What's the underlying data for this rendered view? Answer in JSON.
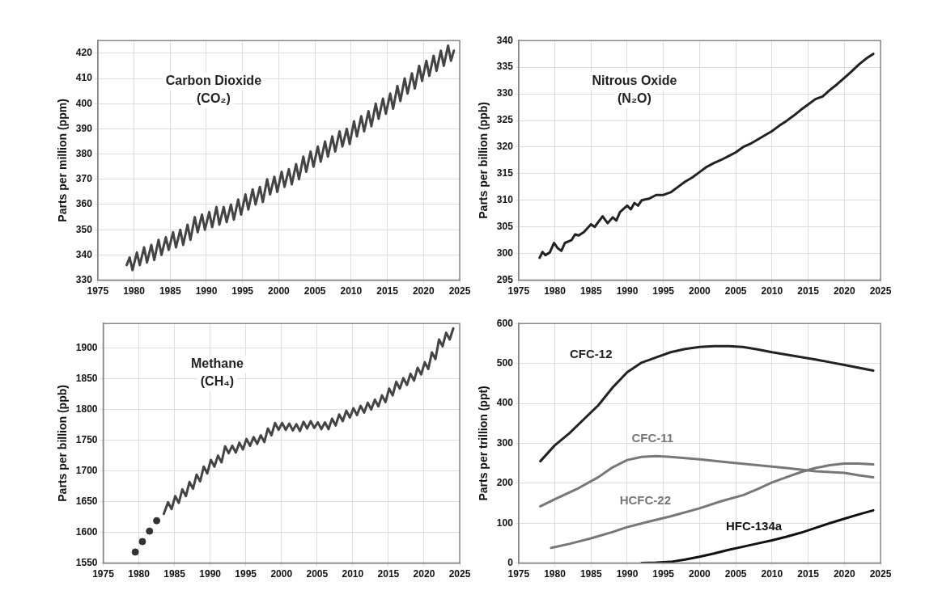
{
  "chart_data": [
    {
      "type": "line",
      "title": "Carbon Dioxide (CO₂)",
      "ylabel": "Parts per million (ppm)",
      "xlim": [
        1975,
        2025
      ],
      "xticks": [
        1975,
        1980,
        1985,
        1990,
        1995,
        2000,
        2005,
        2010,
        2015,
        2020,
        2025
      ],
      "ylim": [
        330,
        425
      ],
      "yticks": [
        330,
        340,
        350,
        360,
        370,
        380,
        390,
        400,
        410,
        420
      ],
      "grid": true,
      "marker": "none",
      "line_style": "solid",
      "legend": false,
      "series": [
        {
          "color": "#444444",
          "x": [
            1979.0,
            1979.4,
            1979.8,
            1980.4,
            1980.8,
            1981.4,
            1981.8,
            1982.4,
            1982.8,
            1983.4,
            1983.8,
            1984.4,
            1984.8,
            1985.4,
            1985.8,
            1986.4,
            1986.8,
            1987.4,
            1987.8,
            1988.4,
            1988.8,
            1989.4,
            1989.8,
            1990.4,
            1990.8,
            1991.4,
            1991.8,
            1992.4,
            1992.8,
            1993.4,
            1993.8,
            1994.4,
            1994.8,
            1995.4,
            1995.8,
            1996.4,
            1996.8,
            1997.4,
            1997.8,
            1998.4,
            1998.8,
            1999.4,
            1999.8,
            2000.4,
            2000.8,
            2001.4,
            2001.8,
            2002.4,
            2002.8,
            2003.4,
            2003.8,
            2004.4,
            2004.8,
            2005.4,
            2005.8,
            2006.4,
            2006.8,
            2007.4,
            2007.8,
            2008.4,
            2008.8,
            2009.4,
            2009.8,
            2010.4,
            2010.8,
            2011.4,
            2011.8,
            2012.4,
            2012.8,
            2013.4,
            2013.8,
            2014.4,
            2014.8,
            2015.4,
            2015.8,
            2016.4,
            2016.8,
            2017.4,
            2017.8,
            2018.4,
            2018.8,
            2019.4,
            2019.8,
            2020.4,
            2020.8,
            2021.4,
            2021.8,
            2022.4,
            2022.8,
            2023.4,
            2023.8,
            2024.2
          ],
          "values": [
            336,
            339,
            334,
            341,
            336,
            343,
            337,
            344,
            338,
            346,
            340,
            347,
            342,
            349,
            343,
            350,
            344,
            352,
            346,
            355,
            349,
            356,
            350,
            357,
            351,
            359,
            352,
            359,
            353,
            360,
            354,
            362,
            356,
            364,
            358,
            366,
            360,
            367,
            361,
            370,
            364,
            371,
            365,
            373,
            367,
            374,
            368,
            376,
            370,
            379,
            373,
            381,
            375,
            383,
            377,
            385,
            379,
            387,
            381,
            389,
            383,
            390,
            384,
            393,
            387,
            395,
            389,
            397,
            391,
            400,
            394,
            402,
            396,
            404,
            398,
            407,
            401,
            410,
            404,
            412,
            406,
            415,
            409,
            417,
            411,
            419,
            413,
            421,
            415,
            423,
            417,
            421
          ]
        }
      ]
    },
    {
      "type": "line",
      "title": "Nitrous Oxide (N₂O)",
      "ylabel": "Parts per billion (ppb)",
      "xlim": [
        1975,
        2025
      ],
      "xticks": [
        1975,
        1980,
        1985,
        1990,
        1995,
        2000,
        2005,
        2010,
        2015,
        2020,
        2025
      ],
      "ylim": [
        295,
        340
      ],
      "yticks": [
        295,
        300,
        305,
        310,
        315,
        320,
        325,
        330,
        335,
        340
      ],
      "grid": true,
      "marker": "none",
      "line_style": "solid",
      "legend": false,
      "series": [
        {
          "color": "#222222",
          "x": [
            1977.9,
            1978.3,
            1978.7,
            1979.3,
            1979.9,
            1980.4,
            1980.9,
            1981.4,
            1982.3,
            1982.8,
            1983.3,
            1984.0,
            1985.0,
            1985.5,
            1986.6,
            1987.3,
            1988.0,
            1988.5,
            1989.0,
            1990.0,
            1990.5,
            1991.0,
            1991.5,
            1992.0,
            1993.0,
            1994.0,
            1995.0,
            1996.0,
            1997.0,
            1998.0,
            1999.0,
            2000.0,
            2001.0,
            2002.0,
            2003.0,
            2004.0,
            2005.0,
            2006.0,
            2007.0,
            2008.0,
            2009.0,
            2010.0,
            2011.0,
            2012.0,
            2013.0,
            2014.0,
            2015.0,
            2016.0,
            2017.0,
            2018.0,
            2019.0,
            2020.0,
            2021.0,
            2022.0,
            2023.0,
            2024.0
          ],
          "values": [
            299.2,
            300.3,
            299.7,
            300.2,
            302.0,
            301.0,
            300.5,
            302.0,
            302.5,
            303.6,
            303.4,
            304.0,
            305.5,
            305.0,
            307.0,
            305.7,
            306.8,
            306.2,
            307.8,
            309.0,
            308.3,
            309.5,
            309.0,
            310.0,
            310.3,
            311.0,
            311.0,
            311.5,
            312.5,
            313.5,
            314.3,
            315.3,
            316.3,
            317.0,
            317.6,
            318.3,
            319.0,
            320.0,
            320.6,
            321.4,
            322.2,
            323.0,
            324.0,
            324.9,
            325.9,
            327.0,
            328.0,
            329.0,
            329.5,
            330.7,
            331.8,
            333.0,
            334.2,
            335.5,
            336.6,
            337.5
          ]
        }
      ]
    },
    {
      "type": "line",
      "title": "Methane (CH₄)",
      "ylabel": "Parts per billion (ppb)",
      "xlim": [
        1975,
        2025
      ],
      "xticks": [
        1975,
        1980,
        1985,
        1990,
        1995,
        2000,
        2005,
        2010,
        2015,
        2020,
        2025
      ],
      "ylim": [
        1550,
        1940
      ],
      "yticks": [
        1550,
        1600,
        1650,
        1700,
        1750,
        1800,
        1850,
        1900
      ],
      "grid": true,
      "marker": "none",
      "line_style": "solid",
      "legend": false,
      "series": [
        {
          "type": "scatter",
          "marker": "circle",
          "color": "#333333",
          "x": [
            1979.5,
            1980.5,
            1981.5,
            1982.5
          ],
          "values": [
            1568,
            1585,
            1602,
            1619
          ]
        },
        {
          "color": "#444444",
          "x": [
            1983.5,
            1984.1,
            1984.6,
            1985.1,
            1985.6,
            1986.1,
            1986.6,
            1987.1,
            1987.6,
            1988.1,
            1988.6,
            1989.1,
            1989.6,
            1990.1,
            1990.6,
            1991.1,
            1991.6,
            1992.1,
            1992.6,
            1993.1,
            1993.6,
            1994.1,
            1994.6,
            1995.1,
            1995.6,
            1996.1,
            1996.6,
            1997.1,
            1997.6,
            1998.1,
            1998.6,
            1999.1,
            1999.6,
            2000.1,
            2000.6,
            2001.1,
            2001.6,
            2002.1,
            2002.6,
            2003.1,
            2003.6,
            2004.1,
            2004.6,
            2005.1,
            2005.6,
            2006.1,
            2006.6,
            2007.1,
            2007.6,
            2008.1,
            2008.6,
            2009.1,
            2009.6,
            2010.1,
            2010.6,
            2011.1,
            2011.6,
            2012.1,
            2012.6,
            2013.1,
            2013.6,
            2014.1,
            2014.6,
            2015.1,
            2015.6,
            2016.1,
            2016.6,
            2017.1,
            2017.6,
            2018.1,
            2018.6,
            2019.1,
            2019.6,
            2020.1,
            2020.6,
            2021.1,
            2021.6,
            2022.1,
            2022.6,
            2023.1,
            2023.6,
            2024.1
          ],
          "values": [
            1630,
            1649,
            1638,
            1659,
            1648,
            1670,
            1659,
            1682,
            1671,
            1694,
            1683,
            1707,
            1696,
            1718,
            1707,
            1725,
            1714,
            1740,
            1729,
            1741,
            1730,
            1746,
            1735,
            1752,
            1741,
            1755,
            1744,
            1758,
            1747,
            1769,
            1758,
            1778,
            1767,
            1778,
            1767,
            1777,
            1766,
            1776,
            1765,
            1780,
            1769,
            1781,
            1770,
            1779,
            1768,
            1779,
            1768,
            1785,
            1774,
            1792,
            1781,
            1798,
            1787,
            1802,
            1791,
            1806,
            1795,
            1811,
            1800,
            1816,
            1805,
            1823,
            1812,
            1834,
            1823,
            1845,
            1834,
            1851,
            1840,
            1858,
            1847,
            1868,
            1857,
            1877,
            1866,
            1893,
            1882,
            1914,
            1903,
            1925,
            1914,
            1932
          ]
        }
      ]
    },
    {
      "type": "line",
      "ylabel": "Parts per trillion (ppt)",
      "xlim": [
        1975,
        2025
      ],
      "xticks": [
        1975,
        1980,
        1985,
        1990,
        1995,
        2000,
        2005,
        2010,
        2015,
        2020,
        2025
      ],
      "ylim": [
        0,
        600
      ],
      "yticks": [
        0,
        100,
        200,
        300,
        400,
        500,
        600
      ],
      "grid": true,
      "marker": "none",
      "line_style": "solid",
      "legend": false,
      "series": [
        {
          "name": "CFC-12",
          "color": "#222222",
          "x": [
            1978,
            1980,
            1982,
            1984,
            1986,
            1988,
            1990,
            1992,
            1994,
            1996,
            1998,
            2000,
            2002,
            2004,
            2006,
            2008,
            2010,
            2012,
            2014,
            2016,
            2018,
            2020,
            2022,
            2024
          ],
          "values": [
            255,
            295,
            325,
            360,
            395,
            440,
            478,
            502,
            515,
            528,
            536,
            541,
            543,
            543,
            541,
            535,
            528,
            522,
            516,
            510,
            503,
            496,
            489,
            482
          ]
        },
        {
          "name": "CFC-11",
          "color": "#777777",
          "x": [
            1978,
            1980,
            1983,
            1986,
            1988,
            1990,
            1992,
            1994,
            1996,
            1998,
            2000,
            2004,
            2008,
            2012,
            2016,
            2020,
            2022,
            2024
          ],
          "values": [
            142,
            160,
            185,
            215,
            240,
            258,
            266,
            268,
            266,
            263,
            260,
            252,
            245,
            238,
            230,
            226,
            220,
            215
          ]
        },
        {
          "name": "HCFC-22",
          "color": "#777777",
          "x": [
            1979.5,
            1982,
            1985,
            1988,
            1990,
            1993,
            1996,
            2000,
            2003,
            2006,
            2008,
            2010,
            2012,
            2014,
            2016,
            2018,
            2020,
            2022,
            2024
          ],
          "values": [
            38,
            48,
            62,
            78,
            90,
            104,
            117,
            137,
            155,
            170,
            185,
            202,
            215,
            228,
            238,
            245,
            249,
            249,
            247
          ]
        },
        {
          "name": "HFC-134a",
          "color": "#111111",
          "x": [
            1992,
            1994,
            1996,
            1998,
            2000,
            2002,
            2004,
            2006,
            2008,
            2010,
            2012,
            2014,
            2016,
            2018,
            2020,
            2022,
            2024
          ],
          "values": [
            0,
            1,
            3,
            9,
            16,
            24,
            33,
            41,
            49,
            57,
            66,
            76,
            88,
            100,
            111,
            122,
            132
          ]
        }
      ]
    }
  ]
}
